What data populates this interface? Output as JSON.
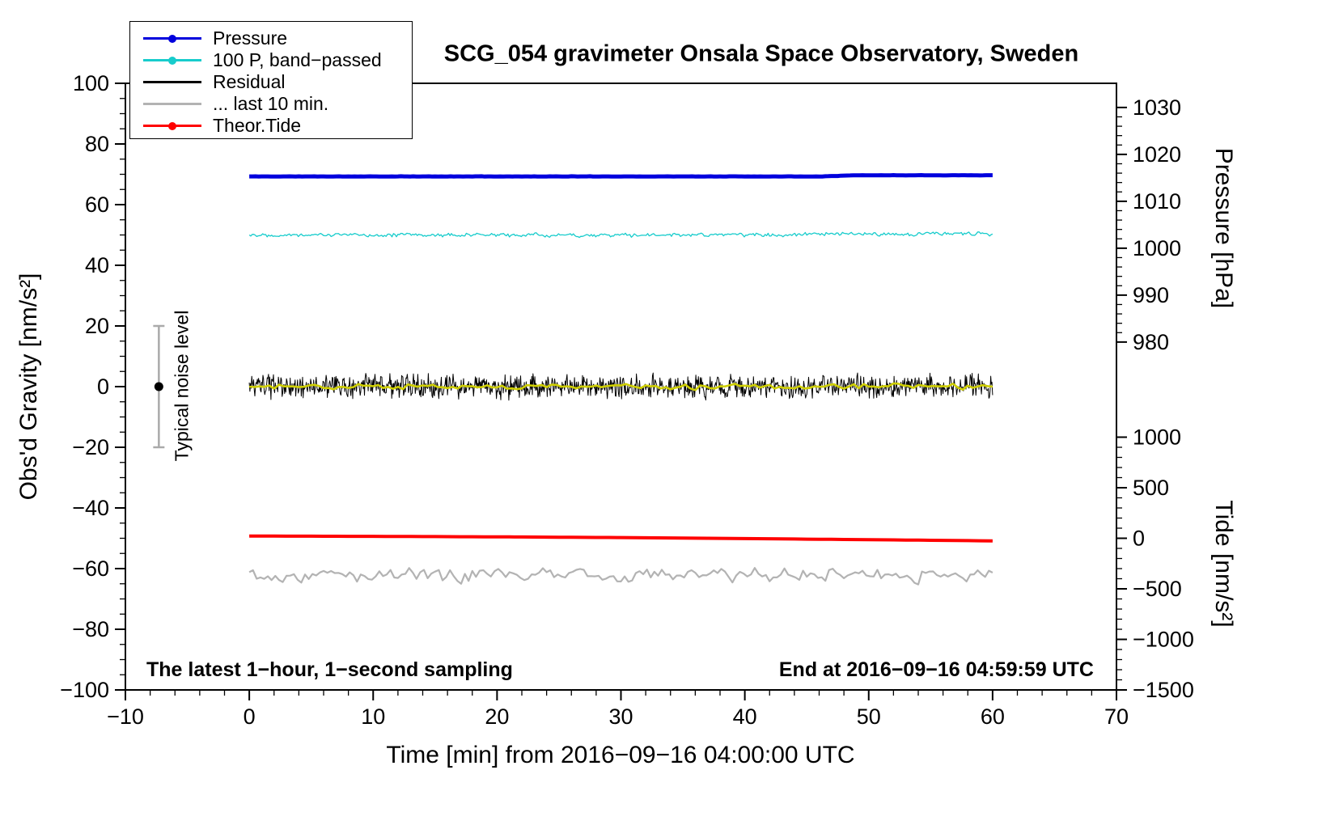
{
  "annotations": {
    "noise_level_label": "Typical noise level",
    "bottom_left": "The latest 1−hour, 1−second sampling",
    "bottom_right": "End at 2016−09−16 04:59:59 UTC"
  },
  "chart_data": {
    "type": "line",
    "title": "SCG_054 gravimeter Onsala Space Observatory, Sweden",
    "xlabel": "Time [min] from 2016−09−16 04:00:00 UTC",
    "ylabel": "Obs'd Gravity [nm/s²]",
    "xlim": [
      -10,
      70
    ],
    "ylim": [
      -100,
      100
    ],
    "x_major": 10,
    "x_minor": 2,
    "y_major": 20,
    "y_minor": 5,
    "grid": false,
    "legend_position": "top-left",
    "xrange_data": [
      0,
      60
    ],
    "right_axes": [
      {
        "id": "pressure",
        "label": "Pressure [hPa]",
        "ticks": [
          1030,
          1020,
          1010,
          1000,
          990,
          980
        ],
        "minor": 2,
        "range": [
          980,
          1030
        ],
        "map": {
          "ref": 980,
          "g_at_ref": 14.7,
          "g_per_unit": 1.5467
        }
      },
      {
        "id": "tide",
        "label": "Tide [nm/s²]",
        "ticks": [
          1000,
          500,
          0,
          -500,
          -1000,
          -1500
        ],
        "minor": 100,
        "range": [
          -1500,
          1000
        ],
        "map": {
          "ref": 0,
          "g_at_ref": -50,
          "g_per_unit": 0.033333
        }
      }
    ],
    "legend": [
      {
        "label": "Pressure",
        "color": "#0000dd",
        "marker": "line-dot"
      },
      {
        "label": "100 P, band−passed",
        "color": "#17cccc",
        "marker": "line-dot"
      },
      {
        "label": "Residual",
        "color": "#000000",
        "marker": "line"
      },
      {
        "label": "... last 10 min.",
        "color": "#b3b3b3",
        "marker": "line"
      },
      {
        "label": "Theor.Tide",
        "color": "#ff0000",
        "marker": "line-dot"
      }
    ],
    "noise_marker": {
      "x": -7.3,
      "y": 0,
      "bar_min": -20,
      "bar_max": 20,
      "color": "#aaaaaa",
      "dot_color": "#000000"
    },
    "series": [
      {
        "name": "... last 10 min.",
        "axis": "gravity",
        "color": "#b3b3b3",
        "width": 2.2,
        "step": 0.3,
        "seed": 55,
        "noise": 2.6,
        "ar": 0.35,
        "anchors": [
          [
            0,
            -62
          ],
          [
            60,
            -62
          ]
        ]
      },
      {
        "name": "Pressure",
        "axis": "pressure",
        "color": "#0000dd",
        "width": 5,
        "step": 0.25,
        "seed": 11,
        "noise": 0.06,
        "anchors": [
          [
            0,
            1015.3
          ],
          [
            40,
            1015.3
          ],
          [
            46,
            1015.3
          ],
          [
            49,
            1015.55
          ],
          [
            60,
            1015.55
          ]
        ]
      },
      {
        "name": "100 P, band−passed",
        "axis": "gravity",
        "color": "#17cccc",
        "width": 1.3,
        "step": 0.12,
        "seed": 22,
        "noise": 0.75,
        "ar": 0.25,
        "anchors": [
          [
            0,
            50.1
          ],
          [
            30,
            49.9
          ],
          [
            60,
            50.4
          ]
        ]
      },
      {
        "name": "Residual",
        "axis": "gravity",
        "color": "#000000",
        "width": 1,
        "step": 0.05,
        "seed": 33,
        "noise": 4.6,
        "ar": 0.1,
        "anchors": [
          [
            0,
            0
          ],
          [
            60,
            0
          ]
        ]
      },
      {
        "name": "Residual smoothed",
        "axis": "gravity",
        "color": "#cfcf00",
        "width": 2.6,
        "step": 0.4,
        "seed": 44,
        "noise": 1.1,
        "ar": 0.4,
        "anchors": [
          [
            0,
            0
          ],
          [
            60,
            0
          ]
        ]
      },
      {
        "name": "Theor.Tide",
        "axis": "tide",
        "color": "#ff0000",
        "width": 4,
        "step": 1,
        "seed": 66,
        "noise": 0,
        "anchors": [
          [
            0,
            22
          ],
          [
            10,
            19
          ],
          [
            20,
            14
          ],
          [
            30,
            7
          ],
          [
            40,
            -3
          ],
          [
            50,
            -14
          ],
          [
            60,
            -26
          ]
        ]
      }
    ]
  }
}
